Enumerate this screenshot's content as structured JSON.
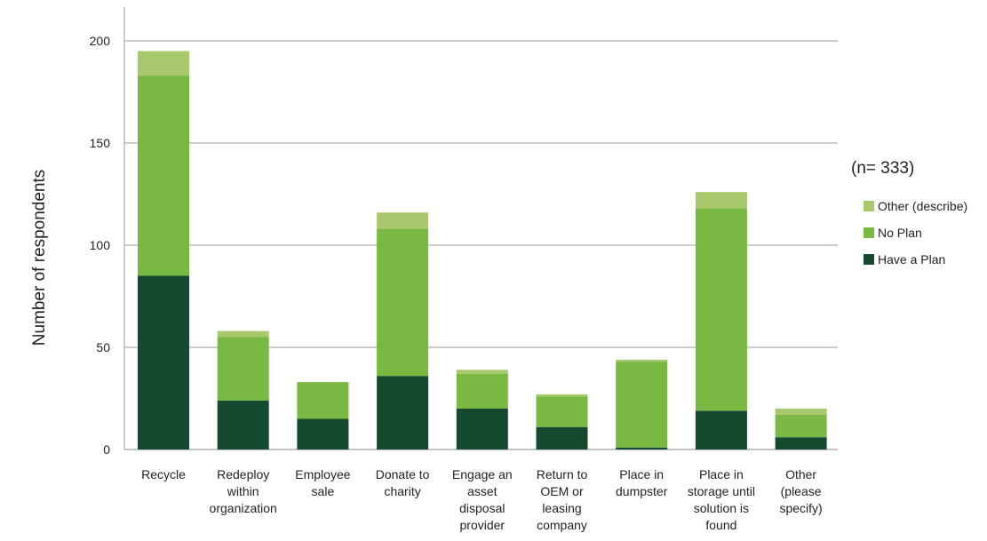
{
  "chart_data": {
    "type": "bar",
    "stacked": true,
    "ylabel": "Number of respondents",
    "xlabel": "",
    "ylim": [
      0,
      200
    ],
    "yticks": [
      0,
      50,
      100,
      150,
      200
    ],
    "grid": true,
    "legend_position": "right",
    "annotation": "(n= 333)",
    "categories": [
      [
        "Recycle"
      ],
      [
        "Redeploy",
        "within",
        "organization"
      ],
      [
        "Employee",
        "sale"
      ],
      [
        "Donate to",
        "charity"
      ],
      [
        "Engage an",
        "asset",
        "disposal",
        "provider"
      ],
      [
        "Return to",
        "OEM or",
        "leasing",
        "company"
      ],
      [
        "Place in",
        "dumpster"
      ],
      [
        "Place in",
        "storage until",
        "solution is",
        "found"
      ],
      [
        "Other",
        "(please",
        "specify)"
      ]
    ],
    "series": [
      {
        "name": "Have a Plan",
        "color": "#154a30",
        "values": [
          85,
          24,
          15,
          36,
          20,
          11,
          1,
          19,
          6
        ]
      },
      {
        "name": "No Plan",
        "color": "#78b843",
        "values": [
          98,
          31,
          18,
          72,
          17,
          15,
          42,
          99,
          11
        ]
      },
      {
        "name": "Other (describe)",
        "color": "#a7c86d",
        "values": [
          12,
          3,
          0,
          8,
          2,
          1,
          1,
          8,
          3
        ]
      }
    ],
    "legend_order": [
      "Other (describe)",
      "No Plan",
      "Have a Plan"
    ]
  }
}
